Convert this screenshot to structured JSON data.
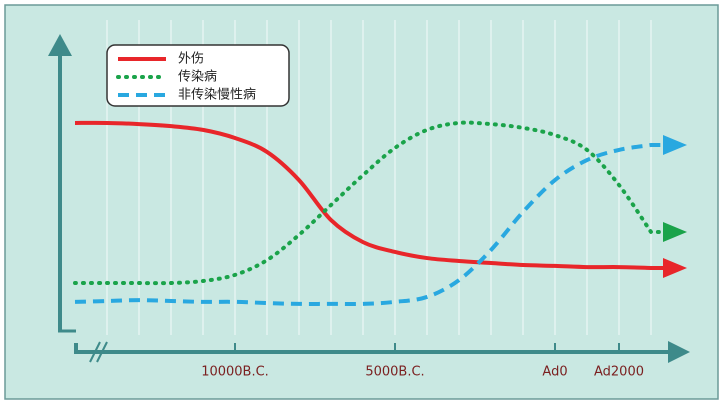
{
  "chart_data": {
    "type": "line",
    "categories": [
      null,
      null,
      null,
      null,
      null,
      "10000B.C.",
      null,
      null,
      null,
      null,
      "5000B.C.",
      null,
      null,
      null,
      null,
      "Ad0",
      null,
      "Ad2000",
      null
    ],
    "series": [
      {
        "name": "外伤",
        "color": "#e8262a",
        "style": "solid",
        "values": [
          71.4,
          71.4,
          71.0,
          70.3,
          69.0,
          66.2,
          61.4,
          51.7,
          37.9,
          30.3,
          26.9,
          24.8,
          23.8,
          23.1,
          22.4,
          22.1,
          21.7,
          21.7,
          21.4
        ]
      },
      {
        "name": "传染病",
        "color": "#1aa34a",
        "style": "dotted",
        "values": [
          16.2,
          16.2,
          16.2,
          16.2,
          16.9,
          19.0,
          24.1,
          32.8,
          43.1,
          53.4,
          62.8,
          69.0,
          71.4,
          71.0,
          69.7,
          67.2,
          62.1,
          50.0,
          33.8
        ]
      },
      {
        "name": "非传染慢性病",
        "color": "#29a8e0",
        "style": "dashed",
        "values": [
          9.7,
          10.0,
          10.3,
          10.0,
          9.7,
          9.7,
          9.3,
          9.0,
          9.0,
          9.0,
          9.7,
          11.4,
          17.2,
          27.6,
          40.7,
          51.7,
          58.6,
          62.1,
          63.8
        ]
      }
    ],
    "ylim": [
      0,
      100
    ],
    "grid": true,
    "legend": "top-left"
  }
}
